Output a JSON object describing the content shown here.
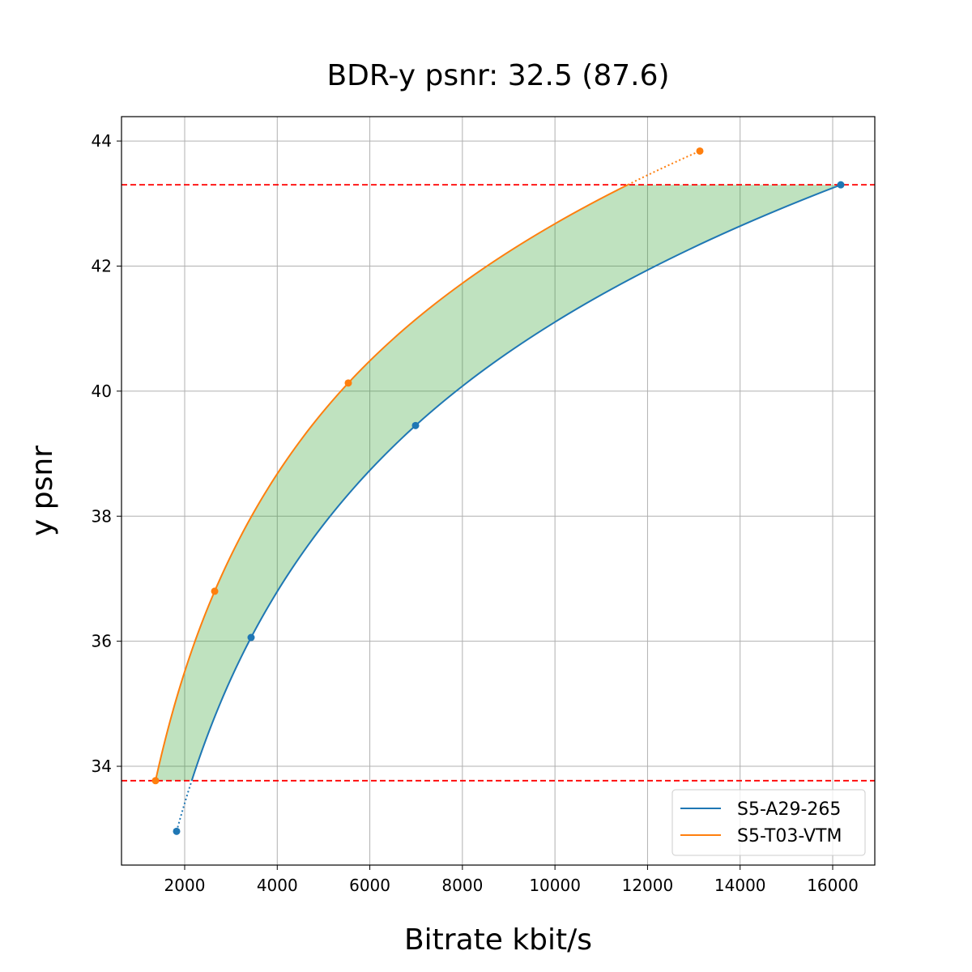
{
  "chart_data": {
    "type": "line",
    "title": "BDR-y psnr: 32.5 (87.6)",
    "xlabel": "Bitrate kbit/s",
    "ylabel": "y psnr",
    "xlim": [
      635,
      16910
    ],
    "ylim": [
      32.42,
      44.39
    ],
    "xticks": [
      2000,
      4000,
      6000,
      8000,
      10000,
      12000,
      14000,
      16000
    ],
    "yticks": [
      34,
      36,
      38,
      40,
      42,
      44
    ],
    "grid": true,
    "legend_position": "lower-right",
    "series": [
      {
        "name": "S5-A29-265",
        "color": "#1f77b4",
        "x": [
          1825,
          3435,
          6988,
          16175
        ],
        "y": [
          32.96,
          36.06,
          39.45,
          43.3
        ]
      },
      {
        "name": "S5-T03-VTM",
        "color": "#ff7f0e",
        "x": [
          1370,
          2648,
          5535,
          13130
        ],
        "y": [
          33.77,
          36.8,
          40.13,
          43.84
        ]
      }
    ],
    "reference_lines": {
      "y": [
        43.3,
        33.77
      ],
      "color": "#ff0000",
      "style": "dashed"
    },
    "fill_between": {
      "y_range": [
        33.77,
        43.3
      ],
      "color": "#2ca02c",
      "opacity": 0.3
    }
  }
}
